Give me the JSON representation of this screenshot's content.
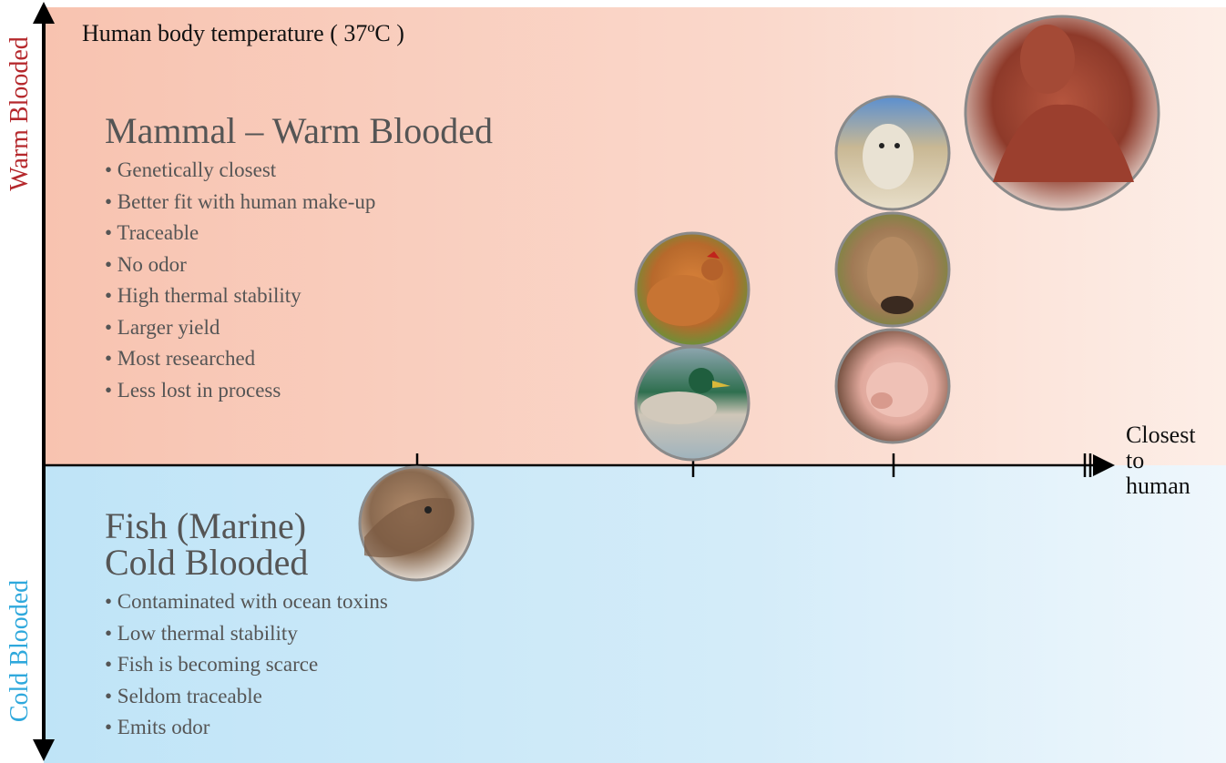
{
  "axes": {
    "y_top_label": "Warm Blooded",
    "y_bottom_label": "Cold Blooded",
    "x_end_label_lines": [
      "Closest",
      "to",
      "human"
    ]
  },
  "top_note": "Human body temperature ( 37ºC )",
  "warm_section": {
    "heading": "Mammal – Warm Blooded",
    "bullets": [
      "• Genetically closest",
      "• Better fit with human make-up",
      "• Traceable",
      "• No odor",
      "• High thermal stability",
      "• Larger yield",
      "• Most researched",
      "• Less lost in process"
    ]
  },
  "cold_section": {
    "heading_lines": [
      "Fish (Marine)",
      "Cold Blooded"
    ],
    "bullets": [
      "• Contaminated with ocean toxins",
      "• Low thermal stability",
      "• Fish is becoming scarce",
      "• Seldom traceable",
      "• Emits odor"
    ]
  },
  "animal_icons": [
    "fish-photo",
    "chicken-photo",
    "duck-photo",
    "sheep-photo",
    "cow-photo",
    "pig-photo",
    "human-anatomy-photo"
  ],
  "colors": {
    "warm_label": "#b5282c",
    "cold_label": "#2ea8dc",
    "warm_panel": "#f8c3b0",
    "cold_panel": "#bfe4f7",
    "body_text": "#555555"
  }
}
